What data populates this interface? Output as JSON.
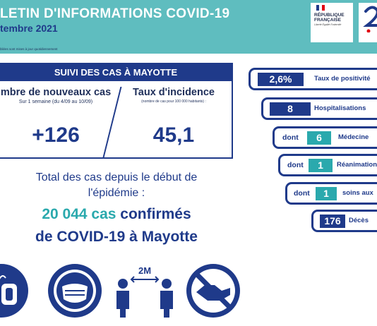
{
  "header": {
    "title": "LETIN D'INFORMATIONS COVID-19",
    "date": "tembre 2021",
    "note": "bliées sont mises à jour quotidiennement",
    "rf_label": "RÉPUBLIQUE FRANÇAISE",
    "rf_motto": "Liberté Égalité Fraternité",
    "colors": {
      "teal": "#5fbdbf",
      "navy": "#1f3a8a",
      "accent": "#2aa9ad"
    }
  },
  "suivi": {
    "title": "SUIVI DES CAS À MAYOTTE",
    "new_cases_label": "mbre de nouveaux cas",
    "new_cases_sub": "Sur 1 semaine (du 4/09 au 10/09)",
    "new_cases_value": "+126",
    "incidence_label": "Taux d'incidence",
    "incidence_sub": "(nombre de cas pour 100 000 habitants) :",
    "incidence_value": "45,1"
  },
  "total": {
    "line1": "Total des cas depuis le début de",
    "line2": "l'épidémie :",
    "count": "20 044 cas",
    "confirmed": " confirmés",
    "line4": "de COVID-19 à Mayotte"
  },
  "icons": [
    "hand-washing-icon",
    "mask-icon",
    "distance-2m-icon",
    "no-handshake-icon"
  ],
  "icon_distance_label": "2M",
  "indicators": {
    "positivity": {
      "value": "2,6%",
      "label": "Taux de positivité"
    },
    "hospital": {
      "value": "8",
      "label": "Hospitalisations"
    },
    "medecine": {
      "prefix": "dont",
      "value": "6",
      "label": "Médecine"
    },
    "reanimation": {
      "prefix": "dont",
      "value": "1",
      "label": "Réanimation"
    },
    "soins": {
      "prefix": "dont",
      "value": "1",
      "label": "soins aux"
    },
    "deces": {
      "value": "176",
      "label": "Décès"
    }
  }
}
